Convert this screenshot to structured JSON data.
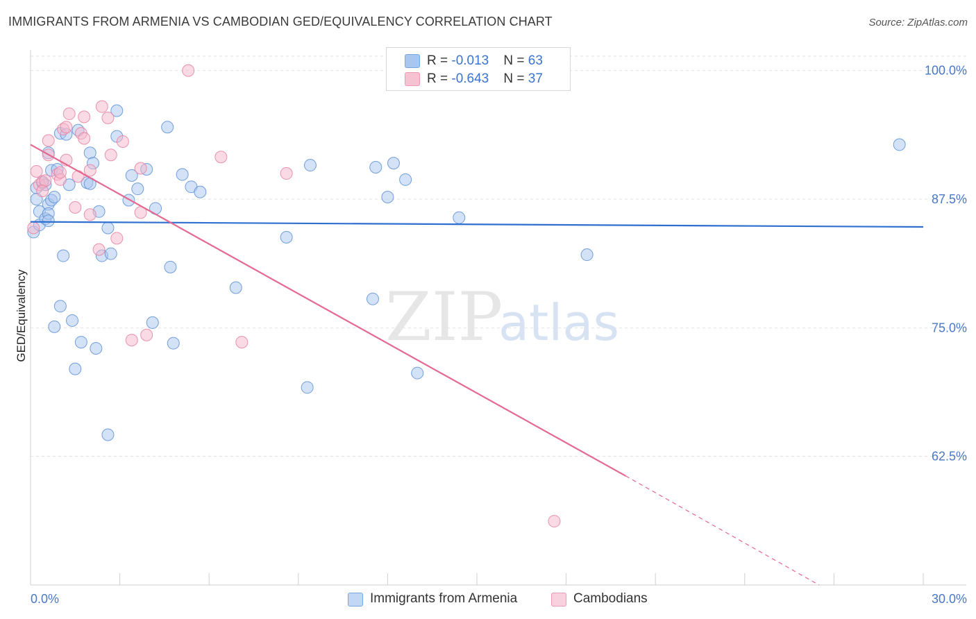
{
  "title": "IMMIGRANTS FROM ARMENIA VS CAMBODIAN GED/EQUIVALENCY CORRELATION CHART",
  "source": "Source: ZipAtlas.com",
  "watermark": {
    "zip": "ZIP",
    "atlas": "atlas"
  },
  "legend": {
    "rows": [
      {
        "r_label": "R = ",
        "r_value": "-0.013",
        "n_label": "N = ",
        "n_value": "63",
        "color": "#a9c6ef"
      },
      {
        "r_label": "R = ",
        "r_value": "-0.643",
        "n_label": "N = ",
        "n_value": "37",
        "color": "#f5b8cb"
      }
    ]
  },
  "bottom_legend": [
    {
      "label": "Immigrants from Armenia",
      "color": "#a9c6ef"
    },
    {
      "label": "Cambodians",
      "color": "#f5b8cb"
    }
  ],
  "chart_data": {
    "type": "scatter",
    "title": "IMMIGRANTS FROM ARMENIA VS CAMBODIAN GED/EQUIVALENCY CORRELATION CHART",
    "xlabel": "",
    "ylabel": "GED/Equivalency",
    "xlim": [
      0,
      30
    ],
    "ylim": [
      50,
      102
    ],
    "x_tick_labels": [
      "0.0%",
      "30.0%"
    ],
    "y_ticks": [
      62.5,
      75.0,
      87.5,
      100.0
    ],
    "y_tick_labels": [
      "62.5%",
      "75.0%",
      "87.5%",
      "100.0%"
    ],
    "grid": true,
    "series": [
      {
        "name": "Immigrants from Armenia",
        "color": "#a9c6ef",
        "stroke": "#5b8fd6",
        "trend": {
          "x0": 0,
          "y0": 85.3,
          "x1": 30,
          "y1": 84.8,
          "color": "#2f6fd0"
        },
        "points": [
          [
            0.1,
            84.3
          ],
          [
            0.2,
            88.6
          ],
          [
            0.2,
            87.5
          ],
          [
            0.3,
            86.3
          ],
          [
            0.3,
            85.0
          ],
          [
            0.4,
            89.1
          ],
          [
            0.5,
            88.9
          ],
          [
            0.5,
            85.6
          ],
          [
            0.6,
            92.0
          ],
          [
            0.6,
            87.0
          ],
          [
            0.6,
            86.1
          ],
          [
            0.7,
            90.3
          ],
          [
            0.7,
            87.4
          ],
          [
            0.8,
            87.7
          ],
          [
            0.9,
            90.4
          ],
          [
            1.0,
            93.9
          ],
          [
            1.0,
            77.1
          ],
          [
            1.1,
            82.0
          ],
          [
            0.8,
            75.1
          ],
          [
            1.2,
            93.8
          ],
          [
            1.3,
            88.9
          ],
          [
            1.4,
            75.7
          ],
          [
            1.5,
            71.0
          ],
          [
            1.6,
            94.2
          ],
          [
            1.7,
            73.6
          ],
          [
            1.9,
            89.1
          ],
          [
            2.0,
            89.0
          ],
          [
            2.0,
            92.0
          ],
          [
            2.1,
            91.0
          ],
          [
            2.2,
            73.0
          ],
          [
            2.3,
            86.3
          ],
          [
            2.4,
            82.0
          ],
          [
            2.6,
            84.7
          ],
          [
            2.7,
            82.2
          ],
          [
            2.6,
            64.6
          ],
          [
            2.9,
            96.1
          ],
          [
            2.9,
            93.6
          ],
          [
            3.3,
            87.4
          ],
          [
            3.4,
            89.8
          ],
          [
            3.6,
            88.5
          ],
          [
            3.9,
            90.4
          ],
          [
            4.1,
            75.5
          ],
          [
            4.2,
            86.6
          ],
          [
            4.6,
            94.5
          ],
          [
            4.7,
            80.9
          ],
          [
            4.8,
            73.5
          ],
          [
            5.1,
            89.9
          ],
          [
            5.4,
            88.7
          ],
          [
            5.7,
            88.2
          ],
          [
            6.9,
            78.9
          ],
          [
            8.6,
            83.8
          ],
          [
            9.3,
            69.2
          ],
          [
            9.4,
            90.8
          ],
          [
            11.5,
            77.8
          ],
          [
            11.6,
            90.6
          ],
          [
            12.0,
            87.7
          ],
          [
            12.2,
            91.0
          ],
          [
            12.6,
            89.4
          ],
          [
            13.0,
            70.6
          ],
          [
            14.4,
            85.7
          ],
          [
            18.7,
            82.1
          ],
          [
            29.2,
            92.8
          ],
          [
            0.6,
            85.4
          ]
        ]
      },
      {
        "name": "Cambodians",
        "color": "#f5b8cb",
        "stroke": "#e7809f",
        "trend": {
          "x0": 0,
          "y0": 92.8,
          "x1": 20.0,
          "y1": 60.6,
          "dash_to_x": 26.5,
          "dash_to_y": 50.0,
          "color": "#e4688f"
        },
        "points": [
          [
            0.1,
            84.7
          ],
          [
            0.2,
            90.2
          ],
          [
            0.3,
            88.9
          ],
          [
            0.4,
            89.2
          ],
          [
            0.6,
            91.8
          ],
          [
            0.6,
            93.2
          ],
          [
            0.9,
            89.9
          ],
          [
            1.0,
            89.4
          ],
          [
            1.1,
            94.3
          ],
          [
            1.2,
            91.3
          ],
          [
            1.2,
            94.5
          ],
          [
            1.3,
            95.8
          ],
          [
            1.5,
            86.7
          ],
          [
            1.6,
            89.7
          ],
          [
            1.7,
            93.9
          ],
          [
            1.8,
            93.4
          ],
          [
            1.8,
            95.5
          ],
          [
            2.0,
            86.0
          ],
          [
            2.0,
            90.3
          ],
          [
            2.3,
            82.6
          ],
          [
            2.4,
            96.5
          ],
          [
            2.6,
            95.4
          ],
          [
            2.7,
            91.8
          ],
          [
            2.9,
            83.7
          ],
          [
            3.1,
            93.1
          ],
          [
            3.4,
            73.8
          ],
          [
            3.7,
            86.2
          ],
          [
            3.7,
            90.5
          ],
          [
            3.9,
            74.3
          ],
          [
            5.3,
            100.0
          ],
          [
            6.4,
            91.6
          ],
          [
            7.1,
            73.6
          ],
          [
            8.6,
            90.0
          ],
          [
            17.6,
            56.2
          ],
          [
            0.5,
            89.3
          ],
          [
            0.4,
            88.3
          ],
          [
            1.0,
            90.1
          ]
        ]
      }
    ]
  }
}
